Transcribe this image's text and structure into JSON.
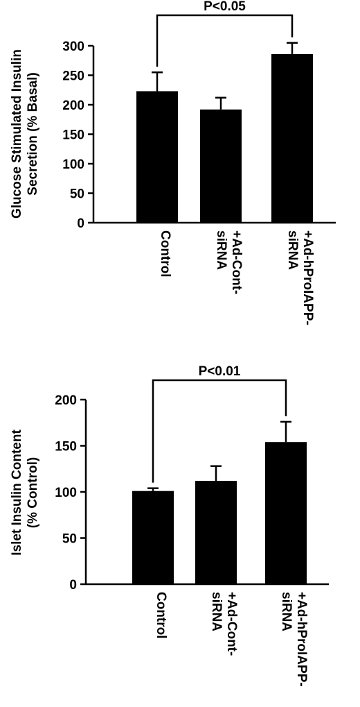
{
  "chart_data": [
    {
      "type": "bar",
      "categories": [
        [
          "Control"
        ],
        [
          "+Ad-Cont-",
          "siRNA"
        ],
        [
          "+Ad-hProIAPP-",
          "siRNA"
        ]
      ],
      "values": [
        223,
        192,
        286
      ],
      "errors": [
        32,
        20,
        19
      ],
      "ylabel": [
        "Glucose Stimulated Insulin",
        "Secretion (% Basal)"
      ],
      "ylim": [
        0,
        300
      ],
      "yticks": [
        0,
        50,
        100,
        150,
        200,
        250,
        300
      ],
      "significance": {
        "from": 0,
        "to": 2,
        "label": "P<0.05"
      },
      "bar_color": "#000000"
    },
    {
      "type": "bar",
      "categories": [
        [
          "Control"
        ],
        [
          "+Ad-Cont-",
          "siRNA"
        ],
        [
          "+Ad-hProIAPP-",
          "siRNA"
        ]
      ],
      "values": [
        101,
        112,
        154
      ],
      "errors": [
        3,
        16,
        22
      ],
      "ylabel": [
        "Islet Insulin Content",
        "(% Control)"
      ],
      "ylim": [
        0,
        200
      ],
      "yticks": [
        0,
        50,
        100,
        150,
        200
      ],
      "significance": {
        "from": 0,
        "to": 2,
        "label": "P<0.01"
      },
      "bar_color": "#000000"
    }
  ]
}
